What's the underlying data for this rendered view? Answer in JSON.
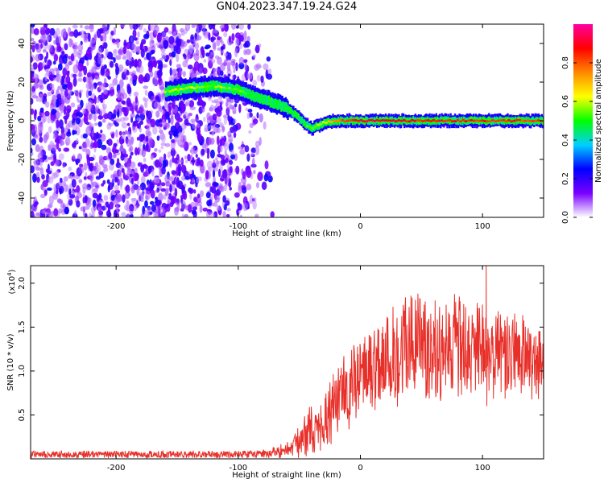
{
  "title": "GN04.2023.347.19.24.G24",
  "chart_data": [
    {
      "type": "heatmap",
      "xlabel": "Height of straight line (km)",
      "ylabel": "Frequency (Hz)",
      "xlim": [
        -270,
        150
      ],
      "ylim": [
        -50,
        50
      ],
      "x_ticks": [
        "-200",
        "-100",
        "0",
        "100"
      ],
      "y_ticks": [
        "-40",
        "-20",
        "0",
        "20",
        "40"
      ],
      "ridge": {
        "x": [
          -160,
          -140,
          -120,
          -100,
          -90,
          -80,
          -70,
          -60,
          -50,
          -45,
          -40,
          -30,
          -20,
          0,
          20,
          50,
          100,
          150
        ],
        "y": [
          15,
          17,
          18,
          16,
          13,
          11,
          9,
          6,
          1,
          -2,
          -4,
          -1,
          0,
          0,
          0,
          0,
          0,
          0
        ],
        "amplitude": [
          0.55,
          0.6,
          0.55,
          0.55,
          0.5,
          0.45,
          0.45,
          0.5,
          0.45,
          0.5,
          0.55,
          0.6,
          0.75,
          0.9,
          0.9,
          0.85,
          0.85,
          0.8
        ]
      },
      "noise_extent_x": [
        -270,
        -70
      ],
      "colorbar": {
        "label": "Normalized spectral amplitude",
        "range": [
          0.0,
          1.0
        ],
        "ticks": [
          "0.0",
          "0.2",
          "0.4",
          "0.6",
          "0.8"
        ],
        "colors": [
          "#ffffff",
          "#7a00ff",
          "#0000ff",
          "#00d0ff",
          "#00ff00",
          "#ffff00",
          "#ff8800",
          "#ff0000",
          "#ff00a0"
        ]
      }
    },
    {
      "type": "line",
      "xlabel": "Height of straight line (km)",
      "ylabel": "SNR (10 * v/v)",
      "y_multiplier": "(x10",
      "y_multiplier_exp": "4",
      "y_multiplier_close": ")",
      "xlim": [
        -270,
        150
      ],
      "ylim": [
        0.0,
        2.2
      ],
      "x_ticks": [
        "-200",
        "-100",
        "0",
        "100"
      ],
      "y_ticks": [
        "0.5",
        "1.0",
        "1.5",
        "2.0"
      ],
      "series": [
        {
          "color": "#e8302a",
          "envelope": {
            "x": [
              -270,
              -200,
              -100,
              -80,
              -60,
              -50,
              -40,
              -35,
              -30,
              -20,
              -10,
              0,
              10,
              20,
              30,
              40,
              50,
              60,
              70,
              80,
              90,
              100,
              110,
              120,
              130,
              140,
              150
            ],
            "mean": [
              0.05,
              0.05,
              0.05,
              0.06,
              0.1,
              0.2,
              0.35,
              0.3,
              0.45,
              0.65,
              0.8,
              0.95,
              1.05,
              1.15,
              1.2,
              1.3,
              1.3,
              1.3,
              1.25,
              1.25,
              1.2,
              1.25,
              1.2,
              1.15,
              1.2,
              1.1,
              1.1
            ],
            "amp": [
              0.05,
              0.05,
              0.05,
              0.06,
              0.1,
              0.2,
              0.35,
              0.3,
              0.4,
              0.45,
              0.5,
              0.55,
              0.6,
              0.65,
              0.7,
              0.75,
              0.7,
              0.7,
              0.7,
              0.7,
              0.6,
              0.65,
              0.6,
              0.6,
              0.55,
              0.5,
              0.45
            ]
          },
          "peak": {
            "x": 103,
            "y": 2.2
          }
        }
      ]
    }
  ]
}
